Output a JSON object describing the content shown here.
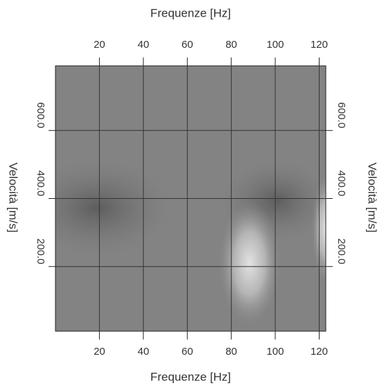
{
  "chart_data": {
    "type": "image",
    "xlabel": "Frequenze [Hz]",
    "ylabel": "Velocità [m/s]",
    "xlim": [
      0,
      123
    ],
    "xticks": [
      20,
      40,
      60,
      80,
      100,
      120
    ],
    "ylim": [
      10,
      790
    ],
    "yticks": [
      {
        "value": 200,
        "label": "200.0"
      },
      {
        "value": 400,
        "label": "400.0"
      },
      {
        "value": 600,
        "label": "600.0"
      }
    ],
    "grid": true
  }
}
